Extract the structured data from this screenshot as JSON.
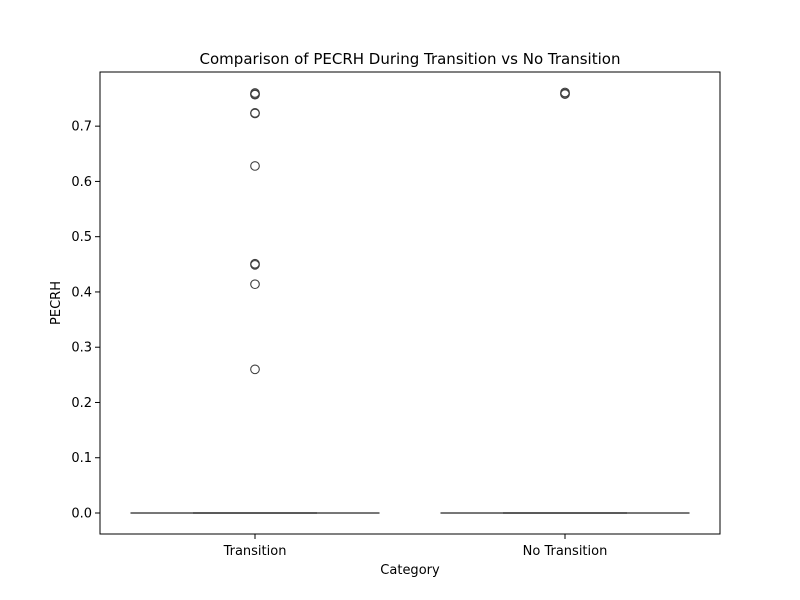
{
  "chart_data": {
    "type": "box",
    "title": "Comparison of PECRH During Transition vs No Transition",
    "xlabel": "Category",
    "ylabel": "PECRH",
    "categories": [
      "Transition",
      "No Transition"
    ],
    "ylim": [
      -0.038,
      0.798
    ],
    "yticks": [
      "0.0",
      "0.1",
      "0.2",
      "0.3",
      "0.4",
      "0.5",
      "0.6",
      "0.7"
    ],
    "grid": false,
    "boxes": [
      {
        "category": "Transition",
        "min": 0.0,
        "q1": 0.0,
        "median": 0.0,
        "q3": 0.0,
        "max": 0.0,
        "outliers": [
          0.76,
          0.758,
          0.757,
          0.724,
          0.723,
          0.628,
          0.451,
          0.449,
          0.414,
          0.26
        ]
      },
      {
        "category": "No Transition",
        "min": 0.0,
        "q1": 0.0,
        "median": 0.0,
        "q3": 0.0,
        "max": 0.0,
        "outliers": [
          0.761,
          0.759,
          0.758
        ]
      }
    ],
    "colors": {
      "box_line": "#3f3f3f",
      "outlier_edge": "#3f3f3f",
      "axes": "#000000"
    }
  }
}
